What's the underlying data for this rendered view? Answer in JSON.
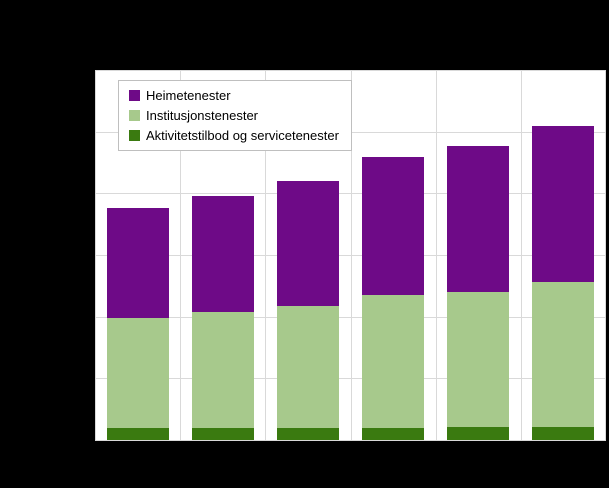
{
  "window": {
    "background_color": "#000000"
  },
  "chart": {
    "plot_background": "#ffffff",
    "gridline_color": "#d9d9d9",
    "legend_background": "#ffffff",
    "legend_border_color": "#bfbfbf",
    "text_color": "#000000"
  },
  "chart_data": {
    "type": "bar",
    "stacked": true,
    "title": "",
    "categories": [
      "",
      "",
      "",
      "",
      "",
      ""
    ],
    "series": [
      {
        "name": "Aktivitetstilbod og servicetenester",
        "color": "#3a7a10",
        "values": [
          3.2,
          3.2,
          3.3,
          3.3,
          3.4,
          3.5
        ]
      },
      {
        "name": "Institusjonstenester",
        "color": "#a7c98c",
        "values": [
          29.7,
          31.3,
          32.9,
          35.8,
          36.7,
          39.2
        ]
      },
      {
        "name": "Heimetenester",
        "color": "#6e0a87",
        "values": [
          29.8,
          31.4,
          33.8,
          37.3,
          39.4,
          42.2
        ]
      }
    ],
    "ylim": [
      0,
      100
    ],
    "grid": {
      "horizontal_intervals": 6,
      "vertical_intervals": 6,
      "visible": true
    },
    "legend_position": "top-left",
    "legend_labels": [
      "Heimetenester",
      "Institusjonstenester",
      "Aktivitetstilbod og servicetenester"
    ],
    "axis_tick_labels_visible": false
  }
}
